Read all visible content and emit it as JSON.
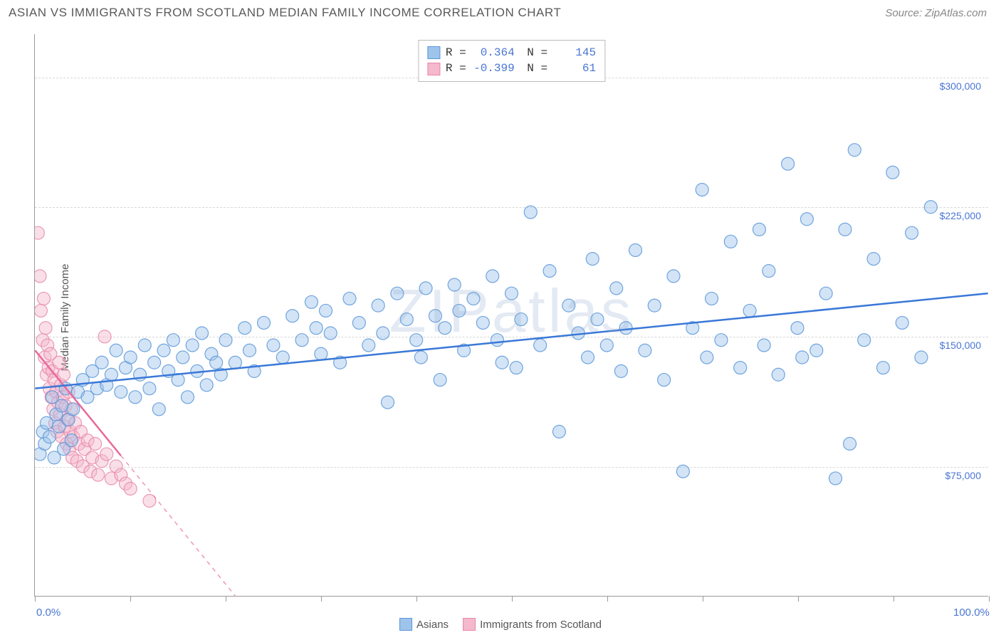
{
  "header": {
    "title": "ASIAN VS IMMIGRANTS FROM SCOTLAND MEDIAN FAMILY INCOME CORRELATION CHART",
    "source_prefix": "Source: ",
    "source": "ZipAtlas.com"
  },
  "watermark": "ZIPatlas",
  "chart": {
    "type": "scatter",
    "background_color": "#ffffff",
    "grid_color": "#d8d8d8",
    "axis_color": "#999999",
    "y_axis_title": "Median Family Income",
    "xlim": [
      0,
      100
    ],
    "ylim": [
      0,
      325000
    ],
    "x_ticks": [
      0,
      10,
      20,
      30,
      40,
      50,
      60,
      70,
      80,
      90,
      100
    ],
    "x_tick_labels": {
      "0": "0.0%",
      "100": "100.0%"
    },
    "y_gridlines": [
      75000,
      150000,
      225000,
      300000
    ],
    "y_tick_labels": {
      "75000": "$75,000",
      "150000": "$150,000",
      "225000": "$225,000",
      "300000": "$300,000"
    },
    "label_color": "#4a76d4",
    "label_fontsize": 14,
    "marker_radius": 9,
    "marker_opacity": 0.45,
    "marker_stroke_opacity": 0.85,
    "trend_line_width": 2.5,
    "series": [
      {
        "name": "Asians",
        "fill_color": "#9ec4eb",
        "stroke_color": "#5a96d8",
        "line_color": "#3a78d8",
        "R": "0.364",
        "N": "145",
        "trend": {
          "x1": 0,
          "y1": 120000,
          "x2": 100,
          "y2": 175000,
          "dashed_after_x": null
        },
        "points": [
          [
            0.5,
            82000
          ],
          [
            0.8,
            95000
          ],
          [
            1.0,
            88000
          ],
          [
            1.2,
            100000
          ],
          [
            1.5,
            92000
          ],
          [
            1.8,
            115000
          ],
          [
            2.0,
            80000
          ],
          [
            2.2,
            105000
          ],
          [
            2.5,
            98000
          ],
          [
            2.8,
            110000
          ],
          [
            3.0,
            85000
          ],
          [
            3.2,
            120000
          ],
          [
            3.5,
            102000
          ],
          [
            3.8,
            90000
          ],
          [
            4.0,
            108000
          ],
          [
            4.5,
            118000
          ],
          [
            5.0,
            125000
          ],
          [
            5.5,
            115000
          ],
          [
            6.0,
            130000
          ],
          [
            6.5,
            120000
          ],
          [
            7.0,
            135000
          ],
          [
            7.5,
            122000
          ],
          [
            8.0,
            128000
          ],
          [
            8.5,
            142000
          ],
          [
            9.0,
            118000
          ],
          [
            9.5,
            132000
          ],
          [
            10.0,
            138000
          ],
          [
            10.5,
            115000
          ],
          [
            11.0,
            128000
          ],
          [
            11.5,
            145000
          ],
          [
            12.0,
            120000
          ],
          [
            12.5,
            135000
          ],
          [
            13.0,
            108000
          ],
          [
            13.5,
            142000
          ],
          [
            14.0,
            130000
          ],
          [
            14.5,
            148000
          ],
          [
            15.0,
            125000
          ],
          [
            15.5,
            138000
          ],
          [
            16.0,
            115000
          ],
          [
            16.5,
            145000
          ],
          [
            17.0,
            130000
          ],
          [
            17.5,
            152000
          ],
          [
            18.0,
            122000
          ],
          [
            18.5,
            140000
          ],
          [
            19.0,
            135000
          ],
          [
            19.5,
            128000
          ],
          [
            20.0,
            148000
          ],
          [
            21.0,
            135000
          ],
          [
            22.0,
            155000
          ],
          [
            22.5,
            142000
          ],
          [
            23.0,
            130000
          ],
          [
            24.0,
            158000
          ],
          [
            25.0,
            145000
          ],
          [
            26.0,
            138000
          ],
          [
            27.0,
            162000
          ],
          [
            28.0,
            148000
          ],
          [
            29.0,
            170000
          ],
          [
            29.5,
            155000
          ],
          [
            30.0,
            140000
          ],
          [
            30.5,
            165000
          ],
          [
            31.0,
            152000
          ],
          [
            32.0,
            135000
          ],
          [
            33.0,
            172000
          ],
          [
            34.0,
            158000
          ],
          [
            35.0,
            145000
          ],
          [
            36.0,
            168000
          ],
          [
            36.5,
            152000
          ],
          [
            37.0,
            112000
          ],
          [
            38.0,
            175000
          ],
          [
            39.0,
            160000
          ],
          [
            40.0,
            148000
          ],
          [
            40.5,
            138000
          ],
          [
            41.0,
            178000
          ],
          [
            42.0,
            162000
          ],
          [
            42.5,
            125000
          ],
          [
            43.0,
            155000
          ],
          [
            44.0,
            180000
          ],
          [
            44.5,
            165000
          ],
          [
            45.0,
            142000
          ],
          [
            46.0,
            172000
          ],
          [
            47.0,
            158000
          ],
          [
            48.0,
            185000
          ],
          [
            48.5,
            148000
          ],
          [
            49.0,
            135000
          ],
          [
            50.0,
            175000
          ],
          [
            50.5,
            132000
          ],
          [
            51.0,
            160000
          ],
          [
            52.0,
            222000
          ],
          [
            53.0,
            145000
          ],
          [
            54.0,
            188000
          ],
          [
            55.0,
            95000
          ],
          [
            56.0,
            168000
          ],
          [
            57.0,
            152000
          ],
          [
            58.0,
            138000
          ],
          [
            58.5,
            195000
          ],
          [
            59.0,
            160000
          ],
          [
            60.0,
            145000
          ],
          [
            61.0,
            178000
          ],
          [
            61.5,
            130000
          ],
          [
            62.0,
            155000
          ],
          [
            63.0,
            200000
          ],
          [
            64.0,
            142000
          ],
          [
            65.0,
            168000
          ],
          [
            66.0,
            125000
          ],
          [
            67.0,
            185000
          ],
          [
            68.0,
            72000
          ],
          [
            69.0,
            155000
          ],
          [
            70.0,
            235000
          ],
          [
            70.5,
            138000
          ],
          [
            71.0,
            172000
          ],
          [
            72.0,
            148000
          ],
          [
            73.0,
            205000
          ],
          [
            74.0,
            132000
          ],
          [
            75.0,
            165000
          ],
          [
            76.0,
            212000
          ],
          [
            76.5,
            145000
          ],
          [
            77.0,
            188000
          ],
          [
            78.0,
            128000
          ],
          [
            79.0,
            250000
          ],
          [
            80.0,
            155000
          ],
          [
            80.5,
            138000
          ],
          [
            81.0,
            218000
          ],
          [
            82.0,
            142000
          ],
          [
            83.0,
            175000
          ],
          [
            84.0,
            68000
          ],
          [
            85.0,
            212000
          ],
          [
            85.5,
            88000
          ],
          [
            86.0,
            258000
          ],
          [
            87.0,
            148000
          ],
          [
            88.0,
            195000
          ],
          [
            89.0,
            132000
          ],
          [
            90.0,
            245000
          ],
          [
            91.0,
            158000
          ],
          [
            92.0,
            210000
          ],
          [
            93.0,
            138000
          ],
          [
            94.0,
            225000
          ]
        ]
      },
      {
        "name": "Immigrants from Scotland",
        "fill_color": "#f5b8cc",
        "stroke_color": "#e888aa",
        "line_color": "#e86a9a",
        "R": "-0.399",
        "N": "61",
        "trend": {
          "x1": 0,
          "y1": 142000,
          "x2": 21,
          "y2": 0,
          "dashed_after_x": 9
        },
        "points": [
          [
            0.3,
            210000
          ],
          [
            0.5,
            185000
          ],
          [
            0.6,
            165000
          ],
          [
            0.8,
            148000
          ],
          [
            0.9,
            172000
          ],
          [
            1.0,
            138000
          ],
          [
            1.1,
            155000
          ],
          [
            1.2,
            128000
          ],
          [
            1.3,
            145000
          ],
          [
            1.4,
            132000
          ],
          [
            1.5,
            120000
          ],
          [
            1.6,
            140000
          ],
          [
            1.7,
            115000
          ],
          [
            1.8,
            130000
          ],
          [
            1.9,
            108000
          ],
          [
            2.0,
            125000
          ],
          [
            2.1,
            100000
          ],
          [
            2.2,
            118000
          ],
          [
            2.3,
            95000
          ],
          [
            2.4,
            112000
          ],
          [
            2.5,
            135000
          ],
          [
            2.6,
            105000
          ],
          [
            2.7,
            122000
          ],
          [
            2.8,
            92000
          ],
          [
            2.9,
            115000
          ],
          [
            3.0,
            128000
          ],
          [
            3.1,
            98000
          ],
          [
            3.2,
            110000
          ],
          [
            3.3,
            88000
          ],
          [
            3.4,
            102000
          ],
          [
            3.5,
            118000
          ],
          [
            3.6,
            85000
          ],
          [
            3.7,
            95000
          ],
          [
            3.8,
            108000
          ],
          [
            3.9,
            80000
          ],
          [
            4.0,
            92000
          ],
          [
            4.2,
            100000
          ],
          [
            4.4,
            78000
          ],
          [
            4.6,
            88000
          ],
          [
            4.8,
            95000
          ],
          [
            5.0,
            75000
          ],
          [
            5.2,
            85000
          ],
          [
            5.5,
            90000
          ],
          [
            5.8,
            72000
          ],
          [
            6.0,
            80000
          ],
          [
            6.3,
            88000
          ],
          [
            6.6,
            70000
          ],
          [
            7.0,
            78000
          ],
          [
            7.3,
            150000
          ],
          [
            7.5,
            82000
          ],
          [
            8.0,
            68000
          ],
          [
            8.5,
            75000
          ],
          [
            9.0,
            70000
          ],
          [
            9.5,
            65000
          ],
          [
            10.0,
            62000
          ],
          [
            12.0,
            55000
          ]
        ]
      }
    ],
    "legend_bottom": [
      {
        "swatch_fill": "#9ec4eb",
        "swatch_stroke": "#5a96d8",
        "label": "Asians"
      },
      {
        "swatch_fill": "#f5b8cc",
        "swatch_stroke": "#e888aa",
        "label": "Immigrants from Scotland"
      }
    ]
  }
}
